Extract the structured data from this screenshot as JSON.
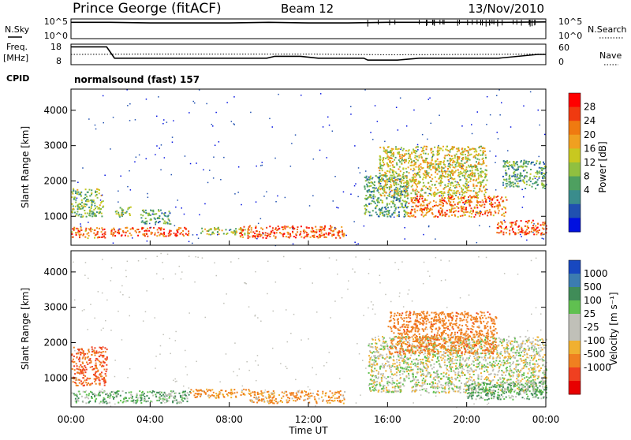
{
  "header": {
    "station": "Prince George (fitACF)",
    "beam": "Beam 12",
    "date": "13/Nov/2010"
  },
  "top_panels": {
    "nsky_label": "N.Sky",
    "nsearch_label": "N.Search",
    "nsky_ticks": [
      "10^5",
      "10^0"
    ],
    "nsearch_ticks": [
      "10^5",
      "10^0"
    ],
    "freq_label_1": "Freq.",
    "freq_label_2": "[MHz]",
    "freq_ticks": [
      "18",
      "8"
    ],
    "nave_label": "Nave",
    "nave_ticks": [
      "60",
      "0"
    ],
    "cpid_label": "CPID",
    "cpid_value": "normalsound (fast) 157"
  },
  "chart_data": [
    {
      "type": "line",
      "panel": "N.Sky / N.Search",
      "ylabel_left": "N.Sky",
      "ylabel_right": "N.Search",
      "yscale": "log",
      "ylim": [
        1,
        100000
      ],
      "series": [
        {
          "name": "N.Sky",
          "x": [
            0,
            2,
            4,
            6,
            8,
            10,
            12,
            14,
            16,
            18,
            20,
            22,
            24
          ],
          "values": [
            30000,
            30000,
            20000,
            20000,
            20000,
            30000,
            20000,
            20000,
            30000,
            30000,
            30000,
            30000,
            40000
          ]
        }
      ]
    },
    {
      "type": "line",
      "panel": "Freq / Nave",
      "ylabel_left": "Freq. [MHz]",
      "ylabel_right": "Nave",
      "series": [
        {
          "name": "Freq.",
          "x": [
            0,
            1.8,
            2.2,
            9.9,
            10.3,
            11.6,
            12.5,
            14.8,
            15.0,
            16.5,
            17.6,
            21.6,
            23.6,
            24.0
          ],
          "values": [
            17,
            17,
            11,
            11,
            12,
            12,
            11,
            11,
            10,
            10,
            11,
            11,
            13,
            13
          ]
        },
        {
          "name": "Nave",
          "x": [
            0,
            4,
            8,
            12,
            16,
            20,
            24
          ],
          "values": [
            30,
            31,
            31,
            31,
            29,
            30,
            31
          ]
        }
      ]
    },
    {
      "type": "heatmap",
      "panel": "Power",
      "ylabel": "Slant Range [km]",
      "ylim": [
        180,
        4600
      ],
      "yticks": [
        "1000",
        "2000",
        "3000",
        "4000"
      ],
      "colorbar_label": "Power [dB]",
      "colorbar_ticks": [
        "28",
        "24",
        "20",
        "16",
        "12",
        "8",
        "4"
      ],
      "colorbar_colors": [
        "#ff0000",
        "#f03a10",
        "#f07a10",
        "#f0a020",
        "#c8c820",
        "#90c040",
        "#4ea060",
        "#3a8c8c",
        "#2050b0",
        "#0010e0"
      ],
      "regions": [
        {
          "t0": 0.0,
          "t1": 1.7,
          "r0": 400,
          "r1": 700,
          "level": 22
        },
        {
          "t0": 0.0,
          "t1": 1.6,
          "r0": 1000,
          "r1": 1800,
          "level": 12
        },
        {
          "t0": 2.0,
          "t1": 6.0,
          "r0": 450,
          "r1": 700,
          "level": 24
        },
        {
          "t0": 2.2,
          "t1": 3.0,
          "r0": 1000,
          "r1": 1300,
          "level": 12
        },
        {
          "t0": 3.5,
          "t1": 5.0,
          "r0": 800,
          "r1": 1200,
          "level": 10
        },
        {
          "t0": 6.5,
          "t1": 9.0,
          "r0": 500,
          "r1": 700,
          "level": 14
        },
        {
          "t0": 8.5,
          "t1": 13.8,
          "r0": 400,
          "r1": 750,
          "level": 24
        },
        {
          "t0": 14.8,
          "t1": 17.0,
          "r0": 1000,
          "r1": 2200,
          "level": 10
        },
        {
          "t0": 15.5,
          "t1": 21.0,
          "r0": 1600,
          "r1": 3000,
          "level": 16
        },
        {
          "t0": 17.0,
          "t1": 22.0,
          "r0": 1000,
          "r1": 1600,
          "level": 22
        },
        {
          "t0": 21.5,
          "t1": 24.0,
          "r0": 500,
          "r1": 900,
          "level": 24
        },
        {
          "t0": 21.8,
          "t1": 24.0,
          "r0": 1800,
          "r1": 2600,
          "level": 10
        }
      ]
    },
    {
      "type": "heatmap",
      "panel": "Velocity",
      "ylabel": "Slant Range [km]",
      "ylim": [
        180,
        4600
      ],
      "yticks": [
        "1000",
        "2000",
        "3000",
        "4000"
      ],
      "xticks": [
        "00:00",
        "04:00",
        "08:00",
        "12:00",
        "16:00",
        "20:00",
        "00:00"
      ],
      "xlabel": "Time UT",
      "colorbar_label": "Velocity [m s⁻¹]",
      "colorbar_ticks": [
        "1000",
        "500",
        "100",
        "25",
        "-25",
        "-100",
        "-500",
        "-1000"
      ],
      "colorbar_colors": [
        "#1848c0",
        "#3c7cb0",
        "#408c58",
        "#60c050",
        "#c0c0b8",
        "#c0c0b8",
        "#f0b030",
        "#f08020",
        "#f04020",
        "#e80000"
      ],
      "regions": [
        {
          "t0": 0.0,
          "t1": 1.8,
          "r0": 800,
          "r1": 1900,
          "v": -300
        },
        {
          "t0": 0.0,
          "t1": 6.0,
          "r0": 300,
          "r1": 650,
          "v": 50
        },
        {
          "t0": 6.0,
          "t1": 9.0,
          "r0": 450,
          "r1": 700,
          "v": -80
        },
        {
          "t0": 9.0,
          "t1": 13.8,
          "r0": 300,
          "r1": 650,
          "v": -70
        },
        {
          "t0": 15.0,
          "t1": 24.0,
          "r0": 600,
          "r1": 2200,
          "v": 0
        },
        {
          "t0": 16.0,
          "t1": 21.5,
          "r0": 1700,
          "r1": 2900,
          "v": -250
        },
        {
          "t0": 20.0,
          "t1": 24.0,
          "r0": 400,
          "r1": 900,
          "v": 60
        }
      ]
    }
  ]
}
